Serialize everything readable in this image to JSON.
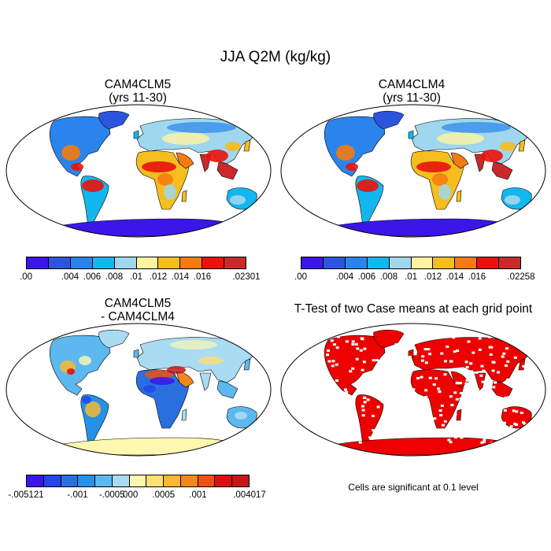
{
  "title": "JJA Q2M (kg/kg)",
  "panels": [
    {
      "id": "cam4clm5",
      "title_line1": "CAM4CLM5",
      "title_line2": "(yrs 11-30)",
      "colorbar": {
        "colors": [
          "#3b16e8",
          "#2c55dd",
          "#2a84ec",
          "#14b6ef",
          "#9fd7ee",
          "#fff5a0",
          "#f5bd1e",
          "#f47a12",
          "#e8130c",
          "#c82a2a"
        ],
        "labels": [
          ".00",
          ".004",
          ".006",
          ".008",
          ".01",
          ".012",
          ".014",
          ".016",
          ".02301"
        ]
      }
    },
    {
      "id": "cam4clm4",
      "title_line1": "CAM4CLM4",
      "title_line2": "(yrs 11-30)",
      "colorbar": {
        "colors": [
          "#3b16e8",
          "#2c55dd",
          "#2a84ec",
          "#14b6ef",
          "#9fd7ee",
          "#fff5a0",
          "#f5bd1e",
          "#f47a12",
          "#e8130c",
          "#c82a2a"
        ],
        "labels": [
          ".00",
          ".004",
          ".006",
          ".008",
          ".01",
          ".012",
          ".014",
          ".016",
          ".02258"
        ]
      }
    },
    {
      "id": "difference",
      "title_line1": "CAM4CLM5",
      "title_line2": "- CAM4CLM4",
      "colorbar": {
        "colors": [
          "#3a16e8",
          "#2445e8",
          "#2a6fe0",
          "#2492e8",
          "#5cb8ee",
          "#a9dcf2",
          "#fff7b0",
          "#fde070",
          "#f9b830",
          "#f38818",
          "#f05010",
          "#dc1010",
          "#c21818"
        ],
        "labels": [
          "-.005121",
          "-.001",
          "-.0005",
          ".000",
          ".0005",
          ".001",
          ".004017"
        ]
      }
    },
    {
      "id": "ttest",
      "title_line1": "T-Test of two Case means at each grid point",
      "note": "Cells are significant at 0.1 level",
      "colors": {
        "significant": "#ee0000"
      }
    }
  ]
}
